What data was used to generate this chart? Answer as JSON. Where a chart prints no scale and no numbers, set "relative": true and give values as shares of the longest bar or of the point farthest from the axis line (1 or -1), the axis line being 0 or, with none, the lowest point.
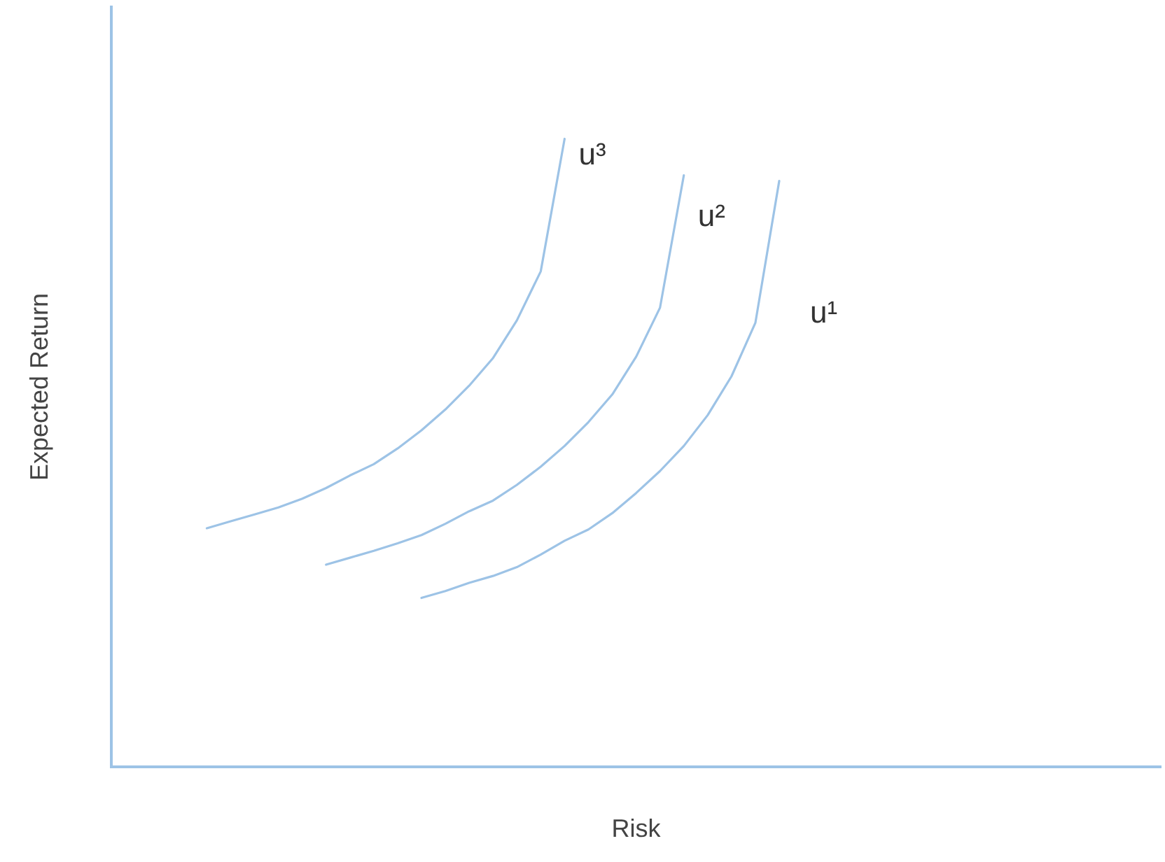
{
  "chart_data": {
    "type": "line",
    "relative": true,
    "xlabel": "Risk",
    "ylabel": "Expected Return",
    "grid": false,
    "legend": false,
    "marker": "none",
    "line_style": "solid",
    "categories": [
      null,
      null,
      null,
      null,
      null,
      null,
      null,
      null,
      null,
      null,
      null,
      null,
      null,
      null,
      null,
      null,
      null,
      null,
      null,
      null,
      null,
      null,
      null,
      null,
      null,
      null,
      null,
      null,
      null,
      null,
      null,
      null,
      null,
      null,
      null,
      null,
      null,
      null,
      null,
      null,
      null,
      null,
      null,
      null,
      null
    ],
    "series": [
      {
        "name": "u³",
        "color": "#9dc3e6",
        "values": [
          null,
          null,
          null,
          null,
          0.38,
          0.391,
          0.402,
          0.413,
          0.427,
          0.444,
          0.464,
          0.482,
          0.507,
          0.536,
          0.569,
          0.607,
          0.651,
          0.711,
          0.789,
          1.0,
          null,
          null,
          null,
          null,
          null,
          null,
          null,
          null,
          null,
          null,
          null,
          null,
          null,
          null,
          null,
          null,
          null,
          null,
          null,
          null,
          null,
          null,
          null,
          null,
          null
        ]
      },
      {
        "name": "u²",
        "color": "#9dc3e6",
        "values": [
          null,
          null,
          null,
          null,
          null,
          null,
          null,
          null,
          null,
          0.322,
          0.333,
          0.344,
          0.356,
          0.369,
          0.387,
          0.407,
          0.424,
          0.449,
          0.478,
          0.511,
          0.549,
          0.593,
          0.653,
          0.731,
          0.942,
          null,
          null,
          null,
          null,
          null,
          null,
          null,
          null,
          null,
          null,
          null,
          null,
          null,
          null,
          null,
          null,
          null,
          null,
          null,
          null
        ]
      },
      {
        "name": "u¹",
        "color": "#9dc3e6",
        "values": [
          null,
          null,
          null,
          null,
          null,
          null,
          null,
          null,
          null,
          null,
          null,
          null,
          null,
          0.269,
          0.28,
          0.293,
          0.304,
          0.318,
          0.338,
          0.36,
          0.378,
          0.404,
          0.436,
          0.471,
          0.511,
          0.56,
          0.622,
          0.707,
          0.933,
          null,
          null,
          null,
          null,
          null,
          null,
          null,
          null,
          null,
          null,
          null,
          null,
          null,
          null,
          null,
          null
        ]
      }
    ]
  }
}
